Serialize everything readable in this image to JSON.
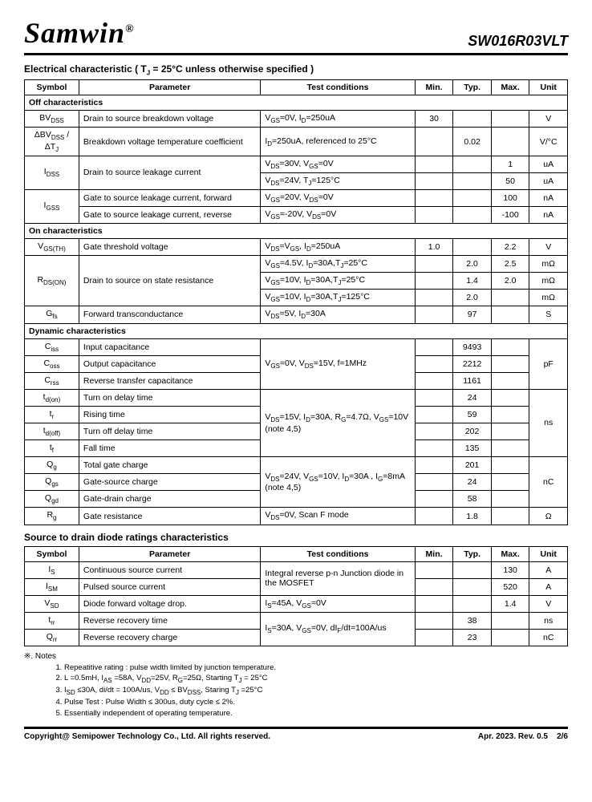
{
  "logo": "Samwin",
  "part": "SW016R03VLT",
  "table1": {
    "title": "Electrical characteristic ( T<sub>J</sub> = 25°C unless otherwise specified )",
    "headers": [
      "Symbol",
      "Parameter",
      "Test conditions",
      "Min.",
      "Typ.",
      "Max.",
      "Unit"
    ],
    "sections": [
      {
        "name": "Off characteristics",
        "rows": [
          {
            "sym": "BV<sub>DSS</sub>",
            "param": "Drain to source breakdown voltage",
            "cond": "V<sub>GS</sub>=0V, I<sub>D</sub>=250uA",
            "min": "30",
            "typ": "",
            "max": "",
            "unit": "V"
          },
          {
            "sym": "ΔBV<sub>DSS</sub> / ΔT<sub>J</sub>",
            "param": "Breakdown voltage temperature coefficient",
            "cond": "I<sub>D</sub>=250uA, referenced to 25°C",
            "min": "",
            "typ": "0.02",
            "max": "",
            "unit": "V/°C"
          },
          {
            "sym": "I<sub>DSS</sub>",
            "param": "Drain to source leakage current",
            "cond": "V<sub>DS</sub>=30V, V<sub>GS</sub>=0V",
            "min": "",
            "typ": "",
            "max": "1",
            "unit": "uA",
            "rowspan": 2
          },
          {
            "cond": "V<sub>DS</sub>=24V, T<sub>J</sub>=125°C",
            "min": "",
            "typ": "",
            "max": "50",
            "unit": "uA"
          },
          {
            "sym": "I<sub>GSS</sub>",
            "param": "Gate to source leakage current, forward",
            "cond": "V<sub>GS</sub>=20V, V<sub>DS</sub>=0V",
            "min": "",
            "typ": "",
            "max": "100",
            "unit": "nA",
            "symrowspan": 2
          },
          {
            "param": "Gate to source leakage current, reverse",
            "cond": "V<sub>GS</sub>=-20V, V<sub>DS</sub>=0V",
            "min": "",
            "typ": "",
            "max": "-100",
            "unit": "nA"
          }
        ]
      },
      {
        "name": "On characteristics",
        "rows": [
          {
            "sym": "V<sub>GS(TH)</sub>",
            "param": "Gate threshold voltage",
            "cond": "V<sub>DS</sub>=V<sub>GS</sub>, I<sub>D</sub>=250uA",
            "min": "1.0",
            "typ": "",
            "max": "2.2",
            "unit": "V"
          },
          {
            "sym": "R<sub>DS(ON)</sub>",
            "param": "Drain to source on state resistance",
            "cond": "V<sub>GS</sub>=4.5V, I<sub>D</sub>=30A,T<sub>J</sub>=25°C",
            "min": "",
            "typ": "2.0",
            "max": "2.5",
            "unit": "mΩ",
            "rowspan": 3
          },
          {
            "cond": "V<sub>GS</sub>=10V, I<sub>D</sub>=30A,T<sub>J</sub>=25°C",
            "min": "",
            "typ": "1.4",
            "max": "2.0",
            "unit": "mΩ"
          },
          {
            "cond": "V<sub>GS</sub>=10V, I<sub>D</sub>=30A,T<sub>J</sub>=125°C",
            "min": "",
            "typ": "2.0",
            "max": "",
            "unit": "mΩ"
          },
          {
            "sym": "G<sub>fs</sub>",
            "param": "Forward transconductance",
            "cond": "V<sub>DS</sub>=5V, I<sub>D</sub>=30A",
            "min": "",
            "typ": "97",
            "max": "",
            "unit": "S"
          }
        ]
      },
      {
        "name": "Dynamic characteristics",
        "rows": [
          {
            "sym": "C<sub>iss</sub>",
            "param": "Input capacitance",
            "cond": "V<sub>GS</sub>=0V, V<sub>DS</sub>=15V, f=1MHz",
            "min": "",
            "typ": "9493",
            "max": "",
            "unit": "pF",
            "condrowspan": 3,
            "unitrowspan": 3
          },
          {
            "sym": "C<sub>oss</sub>",
            "param": "Output capacitance",
            "min": "",
            "typ": "2212",
            "max": ""
          },
          {
            "sym": "C<sub>rss</sub>",
            "param": "Reverse transfer capacitance",
            "min": "",
            "typ": "1161",
            "max": ""
          },
          {
            "sym": "t<sub>d(on)</sub>",
            "param": "Turn on delay time",
            "cond": "V<sub>DS</sub>=15V, I<sub>D</sub>=30A, R<sub>G</sub>=4.7Ω, V<sub>GS</sub>=10V<br>(note 4,5)",
            "min": "",
            "typ": "24",
            "max": "",
            "unit": "ns",
            "condrowspan": 4,
            "unitrowspan": 4
          },
          {
            "sym": "t<sub>r</sub>",
            "param": "Rising time",
            "min": "",
            "typ": "59",
            "max": ""
          },
          {
            "sym": "t<sub>d(off)</sub>",
            "param": "Turn off delay time",
            "min": "",
            "typ": "202",
            "max": ""
          },
          {
            "sym": "t<sub>f</sub>",
            "param": "Fall time",
            "min": "",
            "typ": "135",
            "max": ""
          },
          {
            "sym": "Q<sub>g</sub>",
            "param": "Total gate charge",
            "cond": "V<sub>DS</sub>=24V, V<sub>GS</sub>=10V, I<sub>D</sub>=30A , I<sub>G</sub>=8mA<br>(note 4,5)",
            "min": "",
            "typ": "201",
            "max": "",
            "unit": "nC",
            "condrowspan": 3,
            "unitrowspan": 3
          },
          {
            "sym": "Q<sub>gs</sub>",
            "param": "Gate-source charge",
            "min": "",
            "typ": "24",
            "max": ""
          },
          {
            "sym": "Q<sub>gd</sub>",
            "param": "Gate-drain charge",
            "min": "",
            "typ": "58",
            "max": ""
          },
          {
            "sym": "R<sub>g</sub>",
            "param": "Gate resistance",
            "cond": "V<sub>DS</sub>=0V, Scan F mode",
            "min": "",
            "typ": "1.8",
            "max": "",
            "unit": "Ω"
          }
        ]
      }
    ]
  },
  "table2": {
    "title": "Source to drain diode ratings characteristics",
    "headers": [
      "Symbol",
      "Parameter",
      "Test conditions",
      "Min.",
      "Typ.",
      "Max.",
      "Unit"
    ],
    "rows": [
      {
        "sym": "I<sub>S</sub>",
        "param": "Continuous source current",
        "cond": "Integral reverse p-n Junction diode in the MOSFET",
        "min": "",
        "typ": "",
        "max": "130",
        "unit": "A",
        "condrowspan": 2
      },
      {
        "sym": "I<sub>SM</sub>",
        "param": "Pulsed source current",
        "min": "",
        "typ": "",
        "max": "520",
        "unit": "A"
      },
      {
        "sym": "V<sub>SD</sub>",
        "param": "Diode forward voltage drop.",
        "cond": "I<sub>S</sub>=45A, V<sub>GS</sub>=0V",
        "min": "",
        "typ": "",
        "max": "1.4",
        "unit": "V"
      },
      {
        "sym": "t<sub>rr</sub>",
        "param": "Reverse recovery time",
        "cond": "I<sub>S</sub>=30A, V<sub>GS</sub>=0V, dI<sub>F</sub>/dt=100A/us",
        "min": "",
        "typ": "38",
        "max": "",
        "unit": "ns",
        "condrowspan": 2
      },
      {
        "sym": "Q<sub>rr</sub>",
        "param": "Reverse recovery charge",
        "min": "",
        "typ": "23",
        "max": "",
        "unit": "nC"
      }
    ]
  },
  "notes": {
    "title": "※. Notes",
    "items": [
      "Repeatitive rating : pulse width limited by junction temperature.",
      "L =0.5mH, I<sub>AS</sub> =58A, V<sub>DD</sub>=25V, R<sub>G</sub>=25Ω, Starting T<sub>J</sub> = 25°C",
      "I<sub>SD</sub> ≤30A, di/dt = 100A/us, V<sub>DD</sub> ≤ BV<sub>DSS</sub>, Staring T<sub>J</sub> =25°C",
      "Pulse Test : Pulse Width ≤ 300us, duty cycle ≤ 2%.",
      "Essentially independent of operating temperature."
    ]
  },
  "footer": {
    "copyright": "Copyright@ Semipower Technology Co., Ltd. All rights reserved.",
    "rev": "Apr. 2023. Rev. 0.5",
    "page": "2/6"
  }
}
